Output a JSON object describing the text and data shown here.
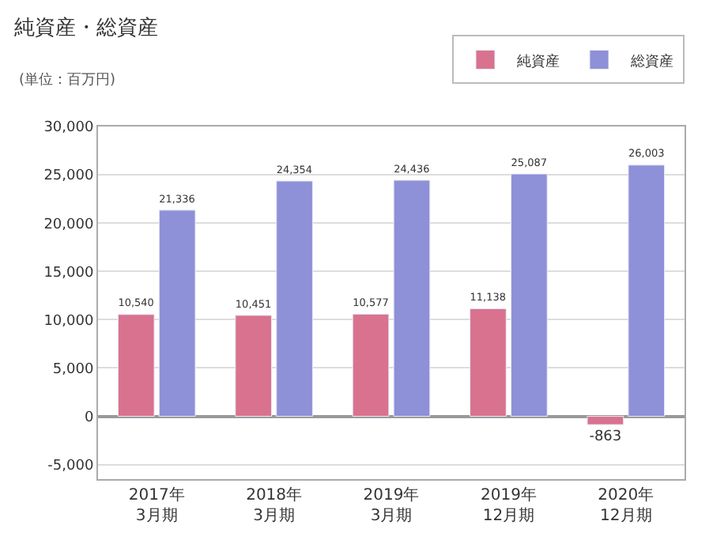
{
  "chart_data": {
    "type": "bar",
    "title": "純資産・総資産",
    "annotations": [
      "(単位：百万円)"
    ],
    "categories": [
      "2017年\n3月期",
      "2018年\n3月期",
      "2019年\n3月期",
      "2019年\n12月期",
      "2020年\n12月期"
    ],
    "series": [
      {
        "name": "純資産",
        "color": "#d9728f",
        "values": [
          10540,
          10451,
          10577,
          11138,
          -863
        ],
        "value_labels": [
          "10,540",
          "10,451",
          "10,577",
          "11,138",
          "-863"
        ]
      },
      {
        "name": "総資産",
        "color": "#8e90d8",
        "values": [
          21336,
          24354,
          24436,
          25087,
          26003
        ],
        "value_labels": [
          "21,336",
          "24,354",
          "24,436",
          "25,087",
          "26,003"
        ]
      }
    ],
    "ylim": [
      -6500,
      30000
    ],
    "yticks": [
      {
        "value": -5000,
        "label": "-5,000"
      },
      0,
      {
        "value": 5000,
        "label": "5,000"
      },
      {
        "value": 10000,
        "label": "10,000"
      },
      {
        "value": 15000,
        "label": "15,000"
      },
      {
        "value": 20000,
        "label": "20,000"
      },
      {
        "value": 25000,
        "label": "25,000"
      },
      {
        "value": 30000,
        "label": "30,000"
      }
    ],
    "grid": "y",
    "legend": "top right"
  }
}
